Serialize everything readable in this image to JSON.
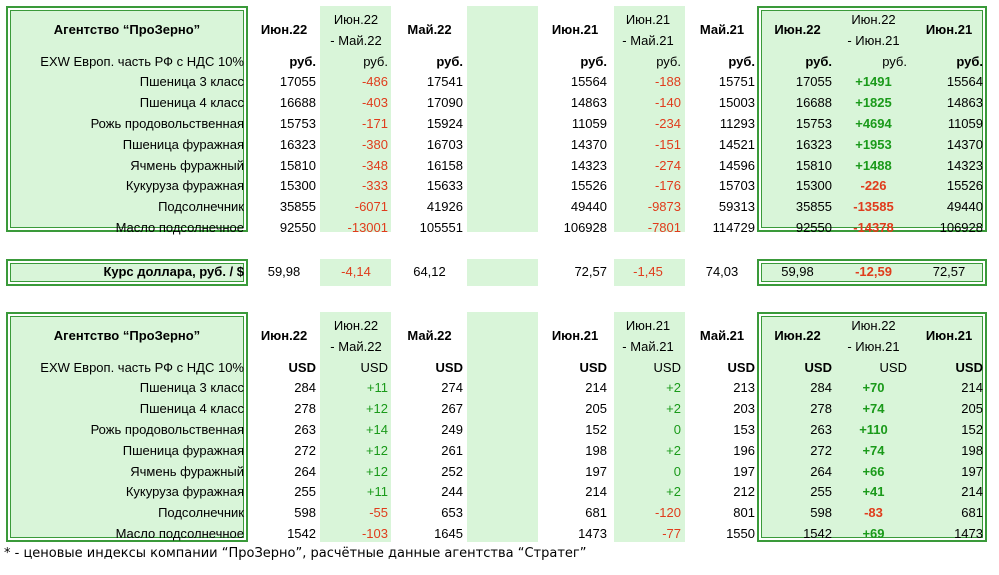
{
  "agency_title": "Агентство “ПроЗерно”",
  "basis_label": "EXW Европ. часть РФ с НДС 10%",
  "headers": {
    "jun22": "Июн.22",
    "diff_m_line1": "Июн.22",
    "diff_m_line2": "- Май.22",
    "may22": "Май.22",
    "jun21": "Июн.21",
    "diff_y_line1": "Июн.21",
    "diff_y_line2": "- Май.21",
    "may21": "Май.21",
    "r_jun22": "Июн.22",
    "diff_r_line1": "Июн.22",
    "diff_r_line2": "- Июн.21",
    "r_jun21": "Июн.21"
  },
  "rub_unit": "руб.",
  "usd_unit": "USD",
  "rub_rows": [
    {
      "name": "Пшеница 3 класс",
      "jun22": "17055",
      "dm": "-486",
      "may22": "17541",
      "jun21": "15564",
      "dy": "-188",
      "may21": "15751",
      "dr": "+1491"
    },
    {
      "name": "Пшеница 4 класс",
      "jun22": "16688",
      "dm": "-403",
      "may22": "17090",
      "jun21": "14863",
      "dy": "-140",
      "may21": "15003",
      "dr": "+1825"
    },
    {
      "name": "Рожь продовольственная",
      "jun22": "15753",
      "dm": "-171",
      "may22": "15924",
      "jun21": "11059",
      "dy": "-234",
      "may21": "11293",
      "dr": "+4694"
    },
    {
      "name": "Пшеница фуражная",
      "jun22": "16323",
      "dm": "-380",
      "may22": "16703",
      "jun21": "14370",
      "dy": "-151",
      "may21": "14521",
      "dr": "+1953"
    },
    {
      "name": "Ячмень фуражный",
      "jun22": "15810",
      "dm": "-348",
      "may22": "16158",
      "jun21": "14323",
      "dy": "-274",
      "may21": "14596",
      "dr": "+1488"
    },
    {
      "name": "Кукуруза фуражная",
      "jun22": "15300",
      "dm": "-333",
      "may22": "15633",
      "jun21": "15526",
      "dy": "-176",
      "may21": "15703",
      "dr": "-226"
    },
    {
      "name": "Подсолнечник",
      "jun22": "35855",
      "dm": "-6071",
      "may22": "41926",
      "jun21": "49440",
      "dy": "-9873",
      "may21": "59313",
      "dr": "-13585"
    },
    {
      "name": "Масло подсолнечное",
      "jun22": "92550",
      "dm": "-13001",
      "may22": "105551",
      "jun21": "106928",
      "dy": "-7801",
      "may21": "114729",
      "dr": "-14378"
    }
  ],
  "usd_rate": {
    "label": "Курс доллара, руб. / $",
    "jun22": "59,98",
    "dm": "-4,14",
    "may22": "64,12",
    "jun21": "72,57",
    "dy": "-1,45",
    "may21": "74,03",
    "dr": "-12,59"
  },
  "usd_rows": [
    {
      "name": "Пшеница 3 класс",
      "jun22": "284",
      "dm": "+11",
      "may22": "274",
      "jun21": "214",
      "dy": "+2",
      "may21": "213",
      "dr": "+70"
    },
    {
      "name": "Пшеница 4 класс",
      "jun22": "278",
      "dm": "+12",
      "may22": "267",
      "jun21": "205",
      "dy": "+2",
      "may21": "203",
      "dr": "+74"
    },
    {
      "name": "Рожь продовольственная",
      "jun22": "263",
      "dm": "+14",
      "may22": "249",
      "jun21": "152",
      "dy": "0",
      "may21": "153",
      "dr": "+110"
    },
    {
      "name": "Пшеница фуражная",
      "jun22": "272",
      "dm": "+12",
      "may22": "261",
      "jun21": "198",
      "dy": "+2",
      "may21": "196",
      "dr": "+74"
    },
    {
      "name": "Ячмень фуражный",
      "jun22": "264",
      "dm": "+12",
      "may22": "252",
      "jun21": "197",
      "dy": "0",
      "may21": "197",
      "dr": "+66"
    },
    {
      "name": "Кукуруза фуражная",
      "jun22": "255",
      "dm": "+11",
      "may22": "244",
      "jun21": "214",
      "dy": "+2",
      "may21": "212",
      "dr": "+41"
    },
    {
      "name": "Подсолнечник",
      "jun22": "598",
      "dm": "-55",
      "may22": "653",
      "jun21": "681",
      "dy": "-120",
      "may21": "801",
      "dr": "-83"
    },
    {
      "name": "Масло подсолнечное",
      "jun22": "1542",
      "dm": "-103",
      "may22": "1645",
      "jun21": "1473",
      "dy": "-77",
      "may21": "1550",
      "dr": "+69"
    }
  ],
  "footnote": "* - ценовые индексы компании “ПроЗерно”, расчётные данные агентства “Стратег”",
  "colors": {
    "green_bg": "#d9f5d9",
    "border": "#3a9a3a",
    "negative": "#e03c1c",
    "positive": "#1a9a1a"
  }
}
